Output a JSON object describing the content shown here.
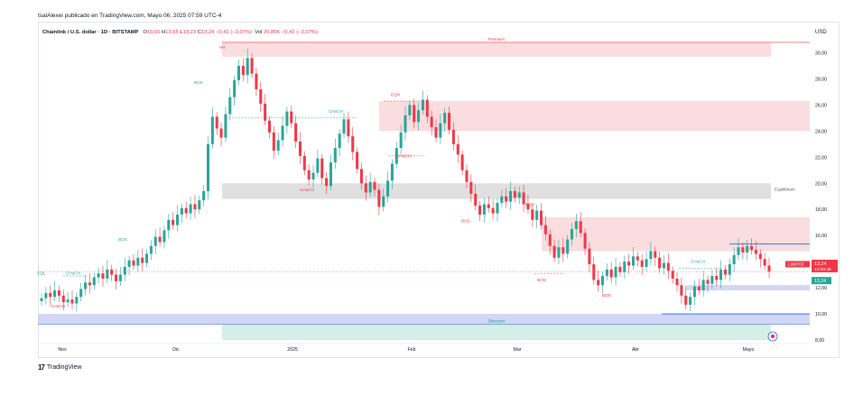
{
  "header": {
    "author_line": "tsalAlexei publicado en TradingView.com, Mayo 06, 2025 07:59 UTC-4"
  },
  "legend": {
    "symbol": "Chainlink / U.S. dollar · 1D · BITSTAMP",
    "open_label": "O",
    "open": "13,65",
    "high_label": "H",
    "high": "13,65",
    "low_label": "L",
    "low": "13,23",
    "close_label": "C",
    "close": "13,24",
    "change": "−0,42 (−3,07%)",
    "volume_label": "Vol",
    "volume": "20,85K",
    "volume_change": "−0,42 (−3,07%)"
  },
  "currency": "USD",
  "footer": {
    "brand": "TradingView",
    "logo_glyph": "17"
  },
  "colors": {
    "up": "#26a69a",
    "down": "#f23645",
    "premium": "#f8d5d7",
    "discount": "#c8ebe0",
    "equilibrium": "#d6d6d6",
    "blue_zone": "#c5cdf2"
  },
  "chart_data": {
    "type": "candlestick",
    "title": "Chainlink / U.S. dollar · 1D · BITSTAMP",
    "x_ticks": [
      "Nov",
      "Dic",
      "2025",
      "Feb",
      "Mar",
      "Abr",
      "Mayo"
    ],
    "y_ticks": [
      "30,00",
      "28,00",
      "26,00",
      "24,00",
      "22,00",
      "20,00",
      "18,00",
      "16,00",
      "14,00",
      "12,00",
      "10,00",
      "8,00"
    ],
    "ylim": [
      8,
      31
    ],
    "price_labels": {
      "last": "13,24",
      "countdown": "12:00:45",
      "close_tag": "13,24",
      "reference": "1.880703"
    },
    "zones": [
      {
        "name": "Premium",
        "top": 30.8,
        "bottom": 29.7,
        "kind": "premium"
      },
      {
        "name": "",
        "top": 26.3,
        "bottom": 24.0,
        "kind": "premium"
      },
      {
        "name": "Equilibrium",
        "top": 20.0,
        "bottom": 18.8,
        "kind": "equilibrium"
      },
      {
        "name": "",
        "top": 17.4,
        "bottom": 14.8,
        "kind": "premium"
      },
      {
        "name": "",
        "top": 12.2,
        "bottom": 11.8,
        "kind": "blue"
      },
      {
        "name": "",
        "top": 10.0,
        "bottom": 9.2,
        "kind": "blue"
      },
      {
        "name": "Discount",
        "top": 9.2,
        "bottom": 8.0,
        "kind": "discount"
      }
    ],
    "annotations": [
      {
        "text": "HH",
        "color": "down"
      },
      {
        "text": "BOS",
        "color": "up"
      },
      {
        "text": "BOS",
        "color": "up"
      },
      {
        "text": "CHoCH",
        "color": "up"
      },
      {
        "text": "CHoCH",
        "color": "down"
      },
      {
        "text": "CHoCH",
        "color": "up"
      },
      {
        "text": "EQH",
        "color": "down"
      },
      {
        "text": "CHoCH",
        "color": "down"
      },
      {
        "text": "CHoCH",
        "color": "down"
      },
      {
        "text": "EQH",
        "color": "down"
      },
      {
        "text": "BOS",
        "color": "down"
      },
      {
        "text": "BOS",
        "color": "down"
      },
      {
        "text": "BOS",
        "color": "down"
      },
      {
        "text": "CHoCH",
        "color": "up"
      },
      {
        "text": "EQL",
        "color": "up"
      }
    ],
    "closes": [
      11.2,
      11.6,
      11.3,
      11.8,
      11.4,
      10.9,
      11.1,
      10.8,
      11.3,
      11.9,
      12.4,
      12.2,
      12.8,
      13.1,
      12.7,
      13.4,
      13.0,
      12.5,
      13.0,
      13.6,
      14.1,
      13.7,
      14.3,
      13.9,
      14.6,
      15.2,
      15.9,
      15.5,
      16.4,
      17.2,
      16.8,
      17.6,
      18.1,
      17.7,
      18.4,
      18.0,
      18.7,
      19.4,
      23.0,
      25.1,
      24.2,
      23.5,
      25.3,
      26.6,
      27.9,
      29.0,
      28.3,
      29.6,
      28.4,
      27.2,
      26.1,
      24.8,
      23.9,
      22.5,
      23.3,
      24.4,
      25.5,
      24.6,
      23.2,
      22.1,
      21.0,
      20.3,
      20.8,
      21.9,
      20.4,
      19.8,
      21.6,
      22.7,
      23.8,
      24.9,
      23.6,
      22.4,
      21.1,
      20.0,
      19.3,
      20.1,
      19.5,
      18.2,
      19.0,
      20.2,
      21.5,
      22.7,
      23.9,
      25.2,
      26.0,
      24.7,
      25.6,
      26.4,
      25.1,
      24.3,
      23.5,
      24.6,
      25.4,
      24.1,
      23.0,
      22.2,
      21.0,
      20.1,
      19.2,
      18.3,
      17.6,
      18.4,
      18.1,
      17.7,
      18.5,
      19.0,
      18.6,
      19.4,
      18.9,
      19.3,
      18.4,
      18.0,
      17.2,
      17.9,
      16.8,
      16.1,
      15.2,
      14.3,
      15.1,
      14.6,
      15.7,
      16.5,
      17.1,
      16.2,
      15.0,
      13.8,
      12.6,
      12.2,
      12.9,
      13.4,
      12.8,
      13.6,
      13.2,
      14.0,
      13.7,
      14.4,
      14.1,
      13.6,
      14.2,
      14.8,
      14.3,
      13.5,
      13.9,
      13.3,
      12.7,
      12.2,
      11.4,
      10.7,
      11.3,
      12.1,
      11.8,
      12.6,
      12.3,
      12.9,
      12.6,
      13.4,
      13.0,
      13.8,
      14.5,
      15.1,
      14.7,
      15.2,
      14.9,
      14.6,
      14.2,
      13.7,
      13.24
    ]
  }
}
